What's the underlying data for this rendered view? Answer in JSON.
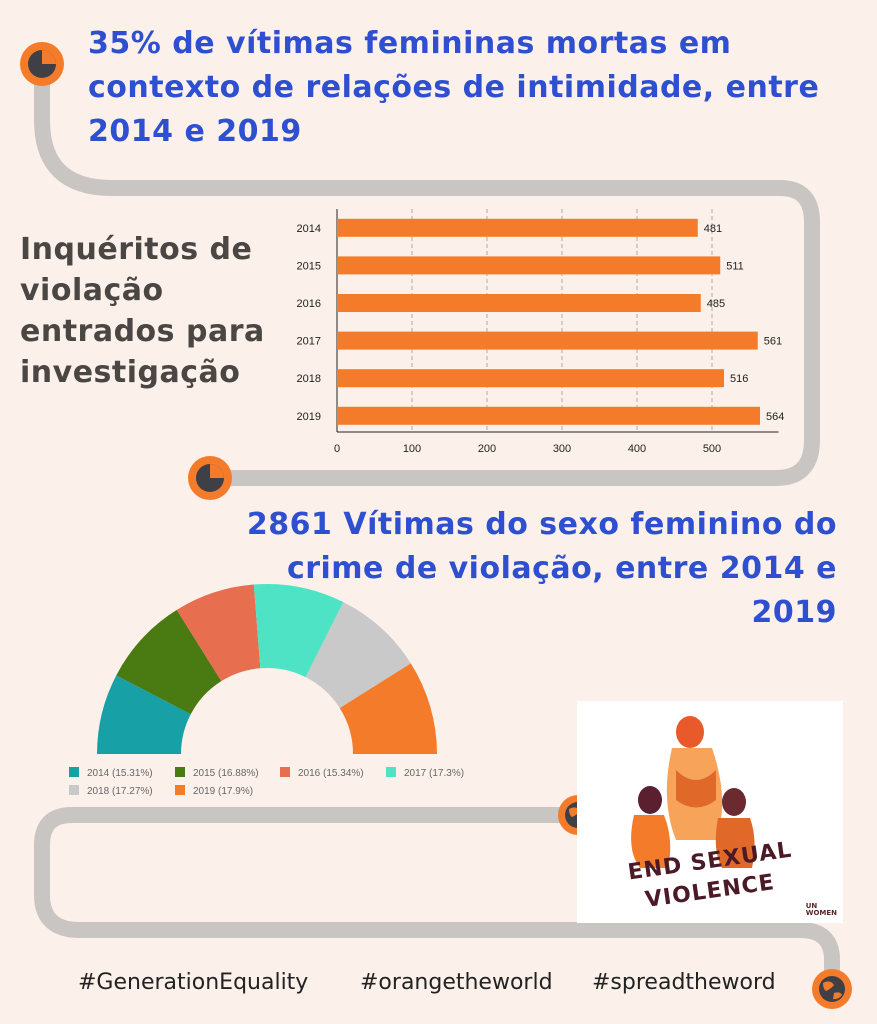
{
  "headline_1": "35% de vítimas femininas mortas em contexto de relações de intimidade, entre 2014 e 2019",
  "side_title": "Inquéritos de violação entrados para investigação",
  "headline_2": "2861 Vítimas do sexo feminino do crime de violação, entre 2014 e 2019",
  "hashtags": [
    "#GenerationEquality",
    "#orangetheworld",
    "#spreadtheword"
  ],
  "logo": {
    "line_1": "END SEXUAL",
    "line_2": "VIOLENCE",
    "org_line_1": "UN",
    "org_line_2": "WOMEN"
  },
  "icons": [
    "pie-chart-icon",
    "pie-chart-icon",
    "globe-icon",
    "globe-icon"
  ],
  "colors": {
    "background": "#fcf1ea",
    "headline": "#2e4fd0",
    "accent_orange": "#f47b2a",
    "path_gray": "#c8c5c3"
  },
  "chart_data": [
    {
      "type": "bar",
      "orientation": "horizontal",
      "categories": [
        "2014",
        "2015",
        "2016",
        "2017",
        "2018",
        "2019"
      ],
      "values": [
        481,
        511,
        485,
        561,
        516,
        564
      ],
      "xlim": [
        0,
        570
      ],
      "xticks": [
        0,
        100,
        200,
        300,
        400,
        500
      ],
      "grid": "vertical dashed",
      "color": "#f47b2a"
    },
    {
      "type": "pie",
      "variant": "semi-donut",
      "categories": [
        "2014",
        "2015",
        "2016",
        "2017",
        "2018",
        "2019"
      ],
      "values": [
        15.31,
        16.88,
        15.34,
        17.3,
        17.27,
        17.9
      ],
      "legend_labels": [
        "2014 (15.31%)",
        "2015 (16.88%)",
        "2016 (15.34%)",
        "2017 (17.3%)",
        "2018 (17.27%)",
        "2019 (17.9%)"
      ],
      "colors": [
        "#17a0a6",
        "#4a7a12",
        "#e86e50",
        "#4fe3c5",
        "#c9c9c9",
        "#f47b2a"
      ],
      "legend_placement": "bottom"
    }
  ]
}
